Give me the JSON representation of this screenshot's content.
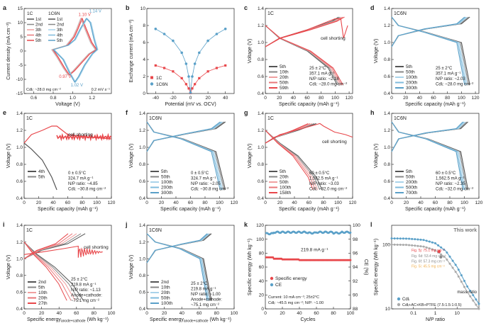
{
  "colors": {
    "red": "#e8474b",
    "red_light": "#f0a0a0",
    "blue": "#5aa0c8",
    "blue_light": "#a9d3ea",
    "grey_dark": "#555555",
    "grey": "#888888",
    "grey_light": "#b5b5b5",
    "annot_red": "#e8474b",
    "annot_blue": "#5aa0c8",
    "annot_orange": "#f0b050"
  },
  "chart_data": [
    {
      "id": "a",
      "type": "line",
      "panel_label": "a",
      "xlabel": "Voltage (V)",
      "ylabel": "Current density (mA cm⁻²)",
      "xlim": [
        0.5,
        1.4
      ],
      "ylim": [
        -15,
        15
      ],
      "xticks": [
        "0.6",
        "0.8",
        "1.0",
        "1.2"
      ],
      "yticks": [
        "-15",
        "-10",
        "-5",
        "0",
        "5",
        "10",
        "15"
      ],
      "legend_headers": [
        "1C",
        "1C6N"
      ],
      "legend_left": [
        "1st",
        "2nd",
        "3th",
        "4th",
        "5th"
      ],
      "legend_right": [
        "1st",
        "2nd",
        "3th",
        "4th",
        "5th"
      ],
      "annotations": [
        "1.10 V",
        "1.14 V",
        "0.97 V",
        "1.02 V",
        "Cdlᵢ: ~28.0 mg cm⁻²",
        "0.2 mV s⁻¹"
      ],
      "series": [
        {
          "name": "1C cycles",
          "x": [
            0.8,
            0.95,
            1.02,
            1.06,
            1.1,
            1.14,
            1.2,
            1.25,
            1.18,
            1.1,
            1.02,
            0.97,
            0.92,
            0.85,
            0.8
          ],
          "y": [
            0.5,
            2,
            5,
            8,
            11.5,
            8,
            3,
            0.5,
            -1,
            -4,
            -7,
            -8.5,
            -6,
            -2,
            0.5
          ]
        },
        {
          "name": "1C6N cycles",
          "x": [
            0.8,
            0.95,
            1.02,
            1.08,
            1.14,
            1.18,
            1.22,
            1.25,
            1.2,
            1.12,
            1.06,
            1.02,
            0.97,
            0.9,
            0.8
          ],
          "y": [
            0.5,
            2,
            4,
            8,
            11.5,
            10,
            4,
            0.5,
            -1,
            -5,
            -9,
            -11,
            -8,
            -3,
            0.5
          ]
        }
      ]
    },
    {
      "id": "b",
      "type": "line",
      "panel_label": "b",
      "xlabel": "Potential (mV vs. OCV)",
      "ylabel": "Exchange current (mA cm⁻²)",
      "xlim": [
        -50,
        50
      ],
      "ylim": [
        0,
        10
      ],
      "xticks": [
        "-40",
        "-20",
        "0",
        "20",
        "40"
      ],
      "yticks": [
        "0",
        "2",
        "4",
        "6",
        "8",
        "10"
      ],
      "legend": [
        "1C",
        "1C6N"
      ],
      "series": [
        {
          "name": "1C",
          "x": [
            -40,
            -30,
            -20,
            -10,
            -5,
            -2,
            0,
            2,
            5,
            10,
            20,
            30,
            40
          ],
          "y": [
            3.3,
            3.0,
            2.6,
            1.8,
            1.1,
            0.6,
            0.05,
            0.6,
            1.1,
            1.8,
            2.6,
            3.0,
            3.3
          ]
        },
        {
          "name": "1C6N",
          "x": [
            -40,
            -30,
            -20,
            -10,
            -5,
            -2,
            0,
            2,
            5,
            10,
            20,
            30,
            40
          ],
          "y": [
            7.6,
            7.0,
            6.2,
            4.8,
            3.5,
            2.0,
            0.1,
            2.0,
            3.5,
            4.8,
            6.2,
            7.0,
            7.6
          ]
        }
      ]
    },
    {
      "id": "c",
      "type": "line",
      "panel_label": "c",
      "sample": "1C",
      "xlabel": "Specific capacity (mAh g⁻¹)",
      "ylabel": "Voltage (V)",
      "xlim": [
        0,
        125
      ],
      "ylim": [
        0.4,
        1.4
      ],
      "xticks": [
        "0",
        "20",
        "40",
        "60",
        "80",
        "100",
        "120"
      ],
      "yticks": [
        "0.4",
        "0.6",
        "0.8",
        "1.0",
        "1.2",
        "1.4"
      ],
      "legend": [
        "5th",
        "10th",
        "20th",
        "50th",
        "59th"
      ],
      "conditions": [
        "25 ± 2°C",
        "357.1 mA g⁻¹",
        "N/P ratio: ~2.18",
        "Cdlᵢ: ~28.0 mg cm⁻²"
      ],
      "callout": "cell shorting",
      "series": [
        {
          "name": "5th",
          "charge_x": [
            0,
            20,
            60,
            95,
            105
          ],
          "charge_y": [
            0.95,
            1.05,
            1.15,
            1.25,
            1.3
          ],
          "discharge_x": [
            0,
            20,
            60,
            90,
            103
          ],
          "discharge_y": [
            1.2,
            1.05,
            0.9,
            0.7,
            0.5
          ]
        },
        {
          "name": "59th",
          "charge_x": [
            0,
            20,
            60,
            100,
            108,
            112,
            118
          ],
          "charge_y": [
            0.95,
            1.05,
            1.15,
            1.28,
            1.28,
            1.05,
            1.2
          ],
          "discharge_x": [
            0,
            20,
            60,
            90,
            110
          ],
          "discharge_y": [
            1.2,
            1.1,
            0.95,
            0.75,
            0.5
          ]
        }
      ]
    },
    {
      "id": "d",
      "type": "line",
      "panel_label": "d",
      "sample": "1C6N",
      "xlabel": "Specific capacity (mAh g⁻¹)",
      "ylabel": "Voltage (V)",
      "xlim": [
        0,
        125
      ],
      "ylim": [
        0.4,
        1.4
      ],
      "xticks": [
        "0",
        "20",
        "40",
        "60",
        "80",
        "100",
        "120"
      ],
      "yticks": [
        "0.4",
        "0.6",
        "0.8",
        "1.0",
        "1.2",
        "1.4"
      ],
      "legend": [
        "5th",
        "50th",
        "100th",
        "200th",
        "300th"
      ],
      "conditions": [
        "25 ± 2°C",
        "357.1 mA g⁻¹",
        "N/P ratio: ~2.03",
        "Cdlᵢ: ~28.0 mg cm⁻²"
      ],
      "series": [
        {
          "name": "charge",
          "x": [
            0,
            10,
            50,
            100,
            112
          ],
          "y": [
            0.95,
            1.08,
            1.16,
            1.22,
            1.3
          ]
        },
        {
          "name": "discharge",
          "x": [
            0,
            10,
            50,
            100,
            112
          ],
          "y": [
            1.3,
            1.2,
            1.12,
            1.0,
            0.5
          ]
        }
      ]
    },
    {
      "id": "e",
      "type": "line",
      "panel_label": "e",
      "sample": "1C",
      "xlabel": "Specific capacity (mAh g⁻¹)",
      "ylabel": "Voltage (V)",
      "xlim": [
        0,
        120
      ],
      "ylim": [
        0.4,
        1.4
      ],
      "xticks": [
        "0",
        "20",
        "40",
        "60",
        "80",
        "100",
        "120"
      ],
      "yticks": [
        "0.4",
        "0.6",
        "0.8",
        "1.0",
        "1.2",
        "1.4"
      ],
      "legend": [
        "4th",
        "5th"
      ],
      "conditions": [
        "0 ± 0.5°C",
        "324.7 mA g⁻¹",
        "N/P ratio: ~4.85",
        "Cdlᵢ: ~30.8 mg cm⁻²"
      ],
      "callout": "cell shorting",
      "series": [
        {
          "name": "4th",
          "x": [
            0,
            10,
            25,
            38,
            45
          ],
          "y": [
            1.05,
            0.98,
            0.85,
            0.65,
            0.5
          ]
        },
        {
          "name": "5th",
          "x": [
            0,
            10,
            25,
            38,
            45,
            60,
            90,
            120
          ],
          "y": [
            1.05,
            1.15,
            1.2,
            1.25,
            1.25,
            1.15,
            1.12,
            1.1
          ]
        }
      ]
    },
    {
      "id": "f",
      "type": "line",
      "panel_label": "f",
      "sample": "1C6N",
      "xlabel": "Specific capacity (mAh g⁻¹)",
      "ylabel": "Voltage (V)",
      "xlim": [
        0,
        120
      ],
      "ylim": [
        0.4,
        1.4
      ],
      "xticks": [
        "0",
        "20",
        "40",
        "60",
        "80",
        "100",
        "120"
      ],
      "yticks": [
        "0.4",
        "0.6",
        "0.8",
        "1.0",
        "1.2",
        "1.4"
      ],
      "legend": [
        "5th",
        "50th",
        "100th",
        "200th",
        "300th"
      ],
      "conditions": [
        "0 ± 0.5°C",
        "324.7 mA g⁻¹",
        "N/P ratio: ~2.05",
        "Cdlᵢ: ~30.8 mg cm⁻²"
      ],
      "series": [
        {
          "name": "charge",
          "x": [
            0,
            10,
            50,
            95,
            108
          ],
          "y": [
            0.95,
            1.08,
            1.15,
            1.22,
            1.3
          ]
        },
        {
          "name": "discharge",
          "x": [
            0,
            10,
            50,
            95,
            108
          ],
          "y": [
            1.3,
            1.18,
            1.1,
            0.95,
            0.5
          ]
        }
      ]
    },
    {
      "id": "g",
      "type": "line",
      "panel_label": "g",
      "sample": "1C",
      "xlabel": "Specific capacity (mAh g⁻¹)",
      "ylabel": "Voltage (V)",
      "xlim": [
        0,
        120
      ],
      "ylim": [
        0.4,
        1.4
      ],
      "xticks": [
        "0",
        "20",
        "40",
        "60",
        "80",
        "100",
        "120"
      ],
      "yticks": [
        "0.4",
        "0.6",
        "0.8",
        "1.0",
        "1.2",
        "1.4"
      ],
      "legend": [
        "5th",
        "20th",
        "50th",
        "100th",
        "158th"
      ],
      "conditions": [
        "60 ± 0.5°C",
        "1,562.5 mA g⁻¹",
        "N/P ratio: ~3.03",
        "Cdlᵢ: ~32.0 mg cm⁻²"
      ],
      "callout": "cell shorting",
      "series": [
        {
          "name": "5th",
          "x": [
            0,
            20,
            45,
            70,
            78
          ],
          "y": [
            1.2,
            1.05,
            0.9,
            0.65,
            0.5
          ]
        },
        {
          "name": "158th",
          "x": [
            0,
            20,
            50,
            75,
            80,
            95,
            110,
            120
          ],
          "y": [
            1.05,
            1.15,
            1.22,
            1.28,
            1.25,
            1.18,
            1.15,
            1.12
          ]
        }
      ]
    },
    {
      "id": "h",
      "type": "line",
      "panel_label": "h",
      "sample": "1C6N",
      "xlabel": "Specific capacity (mAh g⁻¹)",
      "ylabel": "Voltage (V)",
      "xlim": [
        0,
        120
      ],
      "ylim": [
        0.4,
        1.4
      ],
      "xticks": [
        "0",
        "20",
        "40",
        "60",
        "80",
        "100",
        "120"
      ],
      "yticks": [
        "0.4",
        "0.6",
        "0.8",
        "1.0",
        "1.2",
        "1.4"
      ],
      "legend": [
        "5th",
        "50th",
        "200th",
        "500th",
        "700th"
      ],
      "conditions": [
        "60 ± 0.5°C",
        "1,562.5 mA g⁻¹",
        "N/P ratio: ~2.35",
        "Cdlᵢ: ~32.0 mg cm⁻²"
      ],
      "series": [
        {
          "name": "charge",
          "x": [
            0,
            10,
            50,
            95,
            105
          ],
          "y": [
            0.95,
            1.1,
            1.17,
            1.22,
            1.3
          ]
        },
        {
          "name": "discharge",
          "x": [
            0,
            10,
            50,
            95,
            105
          ],
          "y": [
            1.3,
            1.18,
            1.1,
            0.95,
            0.5
          ]
        }
      ]
    },
    {
      "id": "i",
      "type": "line",
      "panel_label": "i",
      "sample": "1C",
      "xlabel": "Specific energy",
      "xlabel_sub": "anode+cathode",
      "xlabel_unit": " (Wh kg⁻¹)",
      "ylabel": "Voltage (V)",
      "xlim": [
        0,
        100
      ],
      "ylim": [
        0.4,
        1.4
      ],
      "xticks": [
        "0",
        "20",
        "40",
        "60",
        "80",
        "100"
      ],
      "yticks": [
        "0.4",
        "0.6",
        "0.8",
        "1.0",
        "1.2",
        "1.4"
      ],
      "legend": [
        "2nd",
        "5th",
        "10th",
        "20th",
        "27th"
      ],
      "conditions": [
        "25 ± 2°C",
        "219.8 mA g⁻¹",
        "N/P ratio: ~1.13",
        "Anode+cathode:",
        "~75.1 mg cm⁻²"
      ],
      "callout": "cell shorting",
      "series": [
        {
          "name": "2nd",
          "x": [
            0,
            15,
            35,
            55,
            68
          ],
          "y": [
            1.2,
            1.05,
            0.9,
            0.7,
            0.5
          ]
        },
        {
          "name": "27th",
          "x": [
            0,
            15,
            40,
            60,
            62,
            66,
            75,
            90
          ],
          "y": [
            1.05,
            1.1,
            1.15,
            1.2,
            1.1,
            1.0,
            1.1,
            1.15
          ]
        }
      ]
    },
    {
      "id": "j",
      "type": "line",
      "panel_label": "j",
      "sample": "1C6N",
      "xlabel": "Specific energy",
      "xlabel_sub": "anode+cathode",
      "xlabel_unit": " (Wh kg⁻¹)",
      "ylabel": "Voltage (V)",
      "xlim": [
        0,
        100
      ],
      "ylim": [
        0.4,
        1.4
      ],
      "xticks": [
        "0",
        "20",
        "40",
        "60",
        "80",
        "100"
      ],
      "yticks": [
        "0.4",
        "0.6",
        "0.8",
        "1.0",
        "1.2",
        "1.4"
      ],
      "legend": [
        "2nd",
        "10th",
        "20th",
        "50th",
        "100th"
      ],
      "conditions": [
        "25 ± 2°C",
        "219.8 mA g⁻¹",
        "N/P ratio: ~1.00",
        "Anode+cathode:",
        "~75.1 mg cm⁻²"
      ],
      "series": [
        {
          "name": "charge",
          "x": [
            0,
            10,
            40,
            65,
            74
          ],
          "y": [
            0.95,
            1.1,
            1.17,
            1.22,
            1.3
          ]
        },
        {
          "name": "discharge",
          "x": [
            0,
            10,
            40,
            65,
            74
          ],
          "y": [
            1.3,
            1.2,
            1.12,
            1.0,
            0.5
          ]
        }
      ]
    },
    {
      "id": "k",
      "type": "scatter",
      "panel_label": "k",
      "xlabel": "Cycles",
      "ylabel": "Specific energy (Wh kg⁻¹)",
      "ylabel_right": "CE (%)",
      "xlim": [
        0,
        100
      ],
      "ylim": [
        0,
        120
      ],
      "ylim_right": [
        88,
        100
      ],
      "xticks": [
        "0",
        "20",
        "40",
        "60",
        "80",
        "100"
      ],
      "yticks": [
        "0",
        "20",
        "40",
        "60",
        "80",
        "100",
        "120"
      ],
      "yticks_right": [
        "88",
        "90",
        "92",
        "94",
        "96",
        "98",
        "100"
      ],
      "legend": [
        "Specific energy",
        "CE"
      ],
      "annotations": [
        "219.8 mA g⁻¹",
        "Current: 10 mA cm⁻²; 25±2°C",
        "Cdlᵢ: ~45.5 mg cm⁻²; N/P: ~1.00"
      ],
      "series": [
        {
          "name": "Specific energy",
          "x": [
            1,
            10,
            20,
            30,
            40,
            50,
            60,
            70,
            80,
            90,
            100
          ],
          "y": [
            74,
            72,
            71,
            71,
            70,
            70,
            70,
            70,
            70,
            70,
            70
          ]
        },
        {
          "name": "CE",
          "x": [
            1,
            10,
            20,
            30,
            40,
            50,
            60,
            70,
            80,
            90,
            100
          ],
          "y": [
            98.8,
            99.0,
            99.0,
            99.0,
            99.0,
            98.9,
            99.0,
            99.0,
            98.9,
            99.0,
            99.0
          ]
        }
      ]
    },
    {
      "id": "l",
      "type": "line",
      "panel_label": "l",
      "xlabel": "N/P ratio",
      "ylabel": "Specific energy (Wh kg⁻¹)",
      "xscale": "log",
      "yscale": "log",
      "xlim": [
        0.01,
        100
      ],
      "ylim": [
        10,
        200
      ],
      "xticks": [
        "0.1",
        "1",
        "10"
      ],
      "yticks": [
        "10",
        "100"
      ],
      "legend": [
        "Cdlᵢ",
        "Cdlᵢ+AC+KB+PTFE (7.5:1.5:1:0.5)"
      ],
      "legend_title": "mass ratio",
      "corner_label": "This work",
      "annotations": [
        "Fig. 5j: 75.1 mg cm⁻²",
        "Fig. 6d: 53.4 mg cm⁻²",
        "Fig. 6f: 57.3 mg cm⁻²",
        "Fig. 5i: 45.5 mg cm⁻²"
      ],
      "series": [
        {
          "name": "Cdlᵢ",
          "x": [
            0.01,
            0.05,
            0.1,
            0.3,
            1,
            3,
            10,
            30,
            100
          ],
          "y": [
            125,
            124,
            122,
            118,
            105,
            80,
            45,
            22,
            12
          ]
        },
        {
          "name": "Cdlᵢ+AC+KB+PTFE",
          "x": [
            0.01,
            0.05,
            0.1,
            0.3,
            1,
            3,
            10,
            30,
            100
          ],
          "y": [
            100,
            99,
            97,
            93,
            82,
            62,
            35,
            18,
            10
          ]
        }
      ]
    }
  ]
}
